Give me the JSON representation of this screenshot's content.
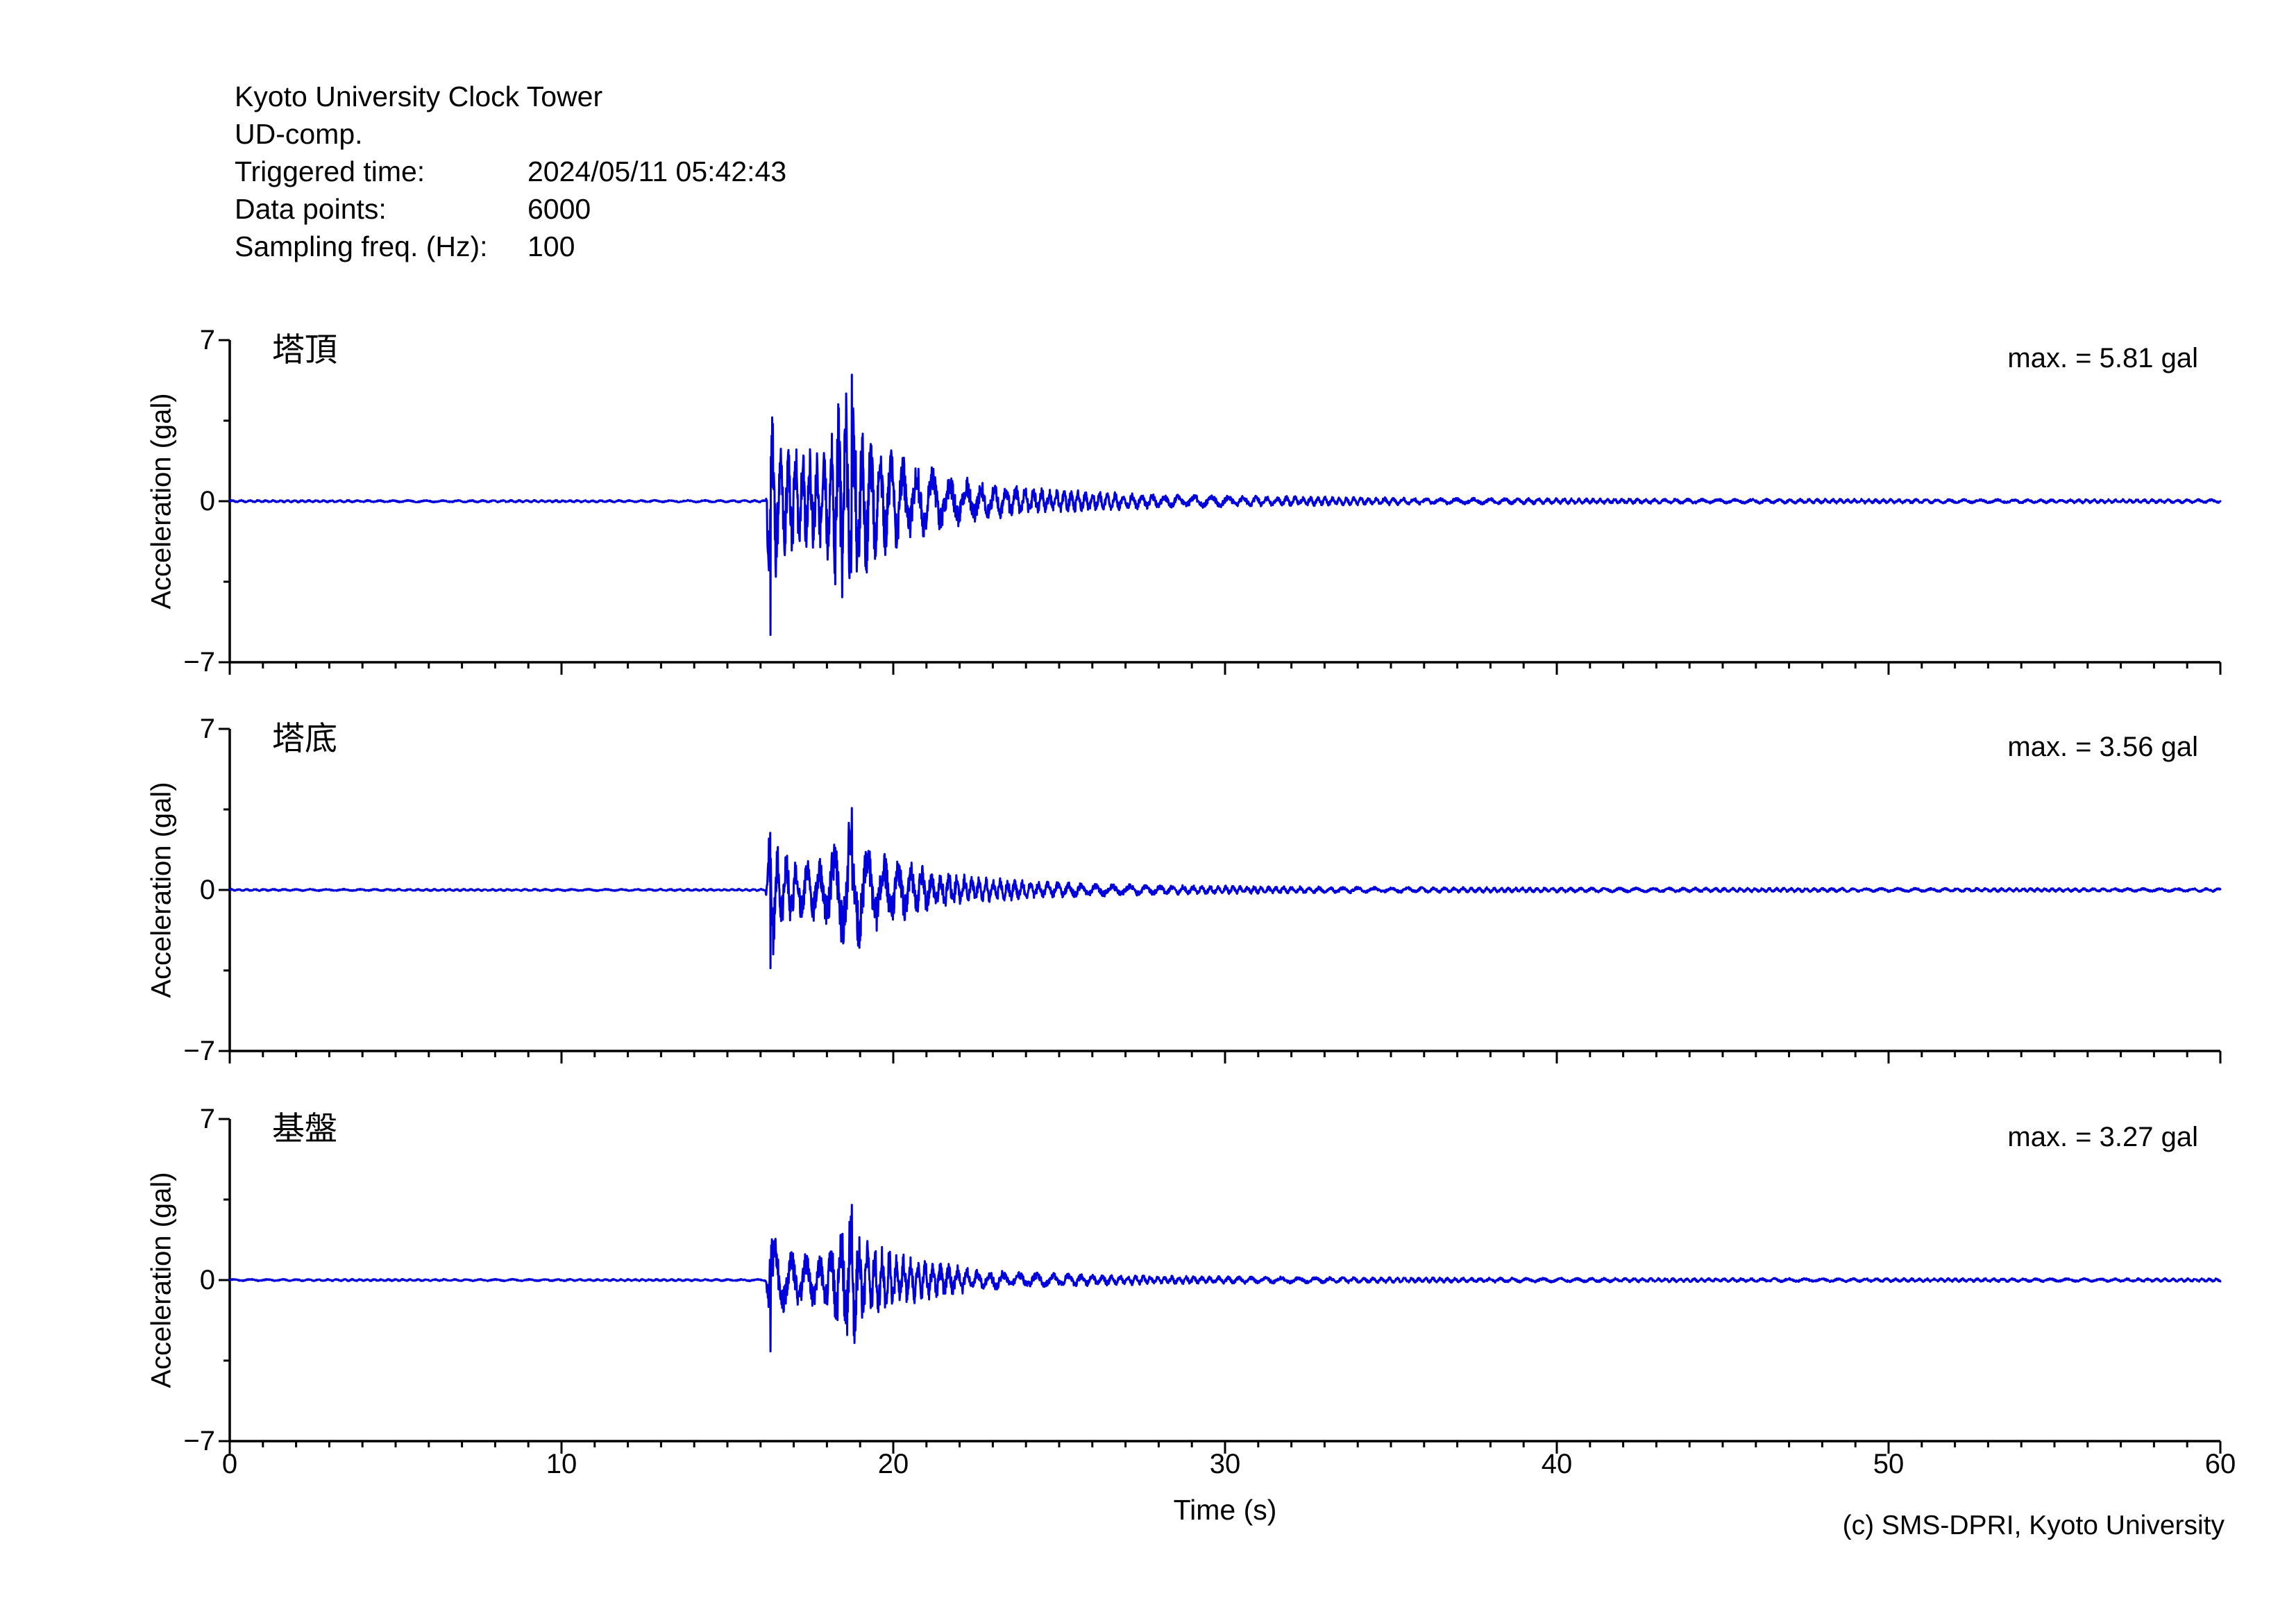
{
  "header": {
    "title": "Kyoto University Clock Tower",
    "component": "UD-comp.",
    "rows": [
      {
        "label": "Triggered time:",
        "value": "2024/05/11 05:42:43"
      },
      {
        "label": "Data points:",
        "value": "6000"
      },
      {
        "label": "Sampling freq. (Hz):",
        "value": "100"
      }
    ]
  },
  "footer": {
    "credit": "(c) SMS-DPRI, Kyoto University"
  },
  "chart_data": {
    "type": "line",
    "xlabel": "Time (s)",
    "ylabel": "Acceleration (gal)",
    "x_range": [
      0,
      60
    ],
    "y_range": [
      -7,
      7
    ],
    "x_major_ticks": [
      0,
      10,
      20,
      30,
      40,
      50,
      60
    ],
    "x_tick_labels": [
      "0",
      "10",
      "20",
      "30",
      "40",
      "50",
      "60"
    ],
    "x_minor_step": 1,
    "y_major_ticks": [
      -7,
      0,
      7
    ],
    "y_minor_ticks": [
      -3.5,
      3.5
    ],
    "y_tick_labels": [
      "7",
      "0",
      "−7"
    ],
    "grid": false,
    "line_color": "#0000dc",
    "axis_color": "#000000",
    "sampling_hz": 100,
    "duration_s": 60,
    "event_onset_s": 16.2,
    "peak_time_s": 18.75,
    "panels": [
      {
        "label": "塔頂",
        "max_label": "max. = 5.81 gal",
        "max_gal": 5.81,
        "envelope": [
          [
            0,
            0.05
          ],
          [
            16.15,
            0.05
          ],
          [
            16.3,
            5.81
          ],
          [
            16.55,
            2.4
          ],
          [
            17.1,
            2.6
          ],
          [
            17.9,
            2.1
          ],
          [
            18.35,
            4.4
          ],
          [
            18.75,
            5.5
          ],
          [
            19.1,
            3.6
          ],
          [
            19.6,
            2.6
          ],
          [
            20.5,
            1.9
          ],
          [
            21.5,
            1.3
          ],
          [
            22.5,
            0.95
          ],
          [
            24,
            0.65
          ],
          [
            26,
            0.45
          ],
          [
            28,
            0.33
          ],
          [
            30,
            0.27
          ],
          [
            33,
            0.2
          ],
          [
            36,
            0.16
          ],
          [
            40,
            0.13
          ],
          [
            45,
            0.11
          ],
          [
            50,
            0.1
          ],
          [
            55,
            0.09
          ],
          [
            60,
            0.09
          ]
        ]
      },
      {
        "label": "塔底",
        "max_label": "max. = 3.56 gal",
        "max_gal": 3.56,
        "envelope": [
          [
            0,
            0.045
          ],
          [
            16.15,
            0.045
          ],
          [
            16.3,
            3.4
          ],
          [
            16.55,
            1.7
          ],
          [
            17.1,
            1.5
          ],
          [
            17.9,
            1.35
          ],
          [
            18.35,
            2.8
          ],
          [
            18.75,
            3.56
          ],
          [
            19.1,
            2.2
          ],
          [
            19.6,
            1.7
          ],
          [
            20.5,
            1.25
          ],
          [
            21.5,
            0.85
          ],
          [
            22.5,
            0.6
          ],
          [
            24,
            0.42
          ],
          [
            26,
            0.3
          ],
          [
            28,
            0.23
          ],
          [
            30,
            0.19
          ],
          [
            33,
            0.15
          ],
          [
            36,
            0.13
          ],
          [
            40,
            0.11
          ],
          [
            45,
            0.1
          ],
          [
            50,
            0.09
          ],
          [
            55,
            0.085
          ],
          [
            60,
            0.08
          ]
        ]
      },
      {
        "label": "基盤",
        "max_label": "max. = 3.27 gal",
        "max_gal": 3.27,
        "envelope": [
          [
            0,
            0.045
          ],
          [
            16.15,
            0.045
          ],
          [
            16.3,
            3.1
          ],
          [
            16.55,
            1.45
          ],
          [
            17.1,
            1.35
          ],
          [
            17.9,
            1.2
          ],
          [
            18.35,
            2.4
          ],
          [
            18.75,
            3.27
          ],
          [
            19.1,
            1.9
          ],
          [
            19.6,
            1.5
          ],
          [
            20.5,
            1.1
          ],
          [
            21.5,
            0.75
          ],
          [
            22.5,
            0.52
          ],
          [
            24,
            0.36
          ],
          [
            26,
            0.26
          ],
          [
            28,
            0.2
          ],
          [
            30,
            0.17
          ],
          [
            33,
            0.14
          ],
          [
            36,
            0.12
          ],
          [
            40,
            0.1
          ],
          [
            45,
            0.09
          ],
          [
            50,
            0.085
          ],
          [
            55,
            0.08
          ],
          [
            60,
            0.075
          ]
        ]
      }
    ]
  }
}
